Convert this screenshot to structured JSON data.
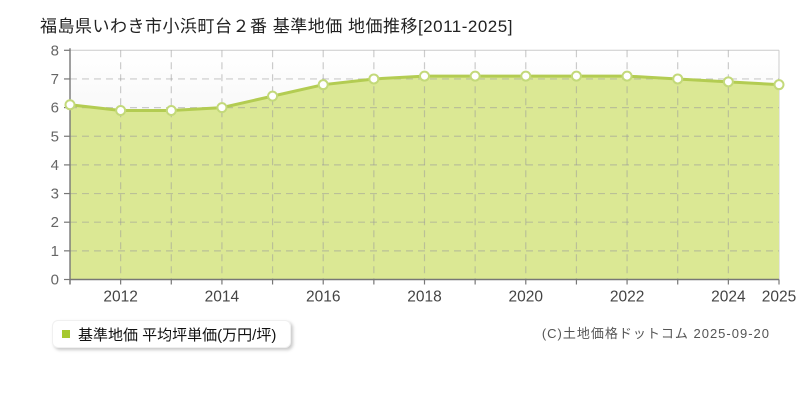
{
  "title": "福島県いわき市小浜町台２番 基準地価 地価推移[2011-2025]",
  "legend": {
    "label": "基準地価 平均坪単価(万円/坪)",
    "marker_color": "#a6c92f"
  },
  "copyright": "(C)土地価格ドットコム 2025-09-20",
  "chart_data": {
    "type": "area",
    "title": "福島県いわき市小浜町台２番 基準地価 地価推移[2011-2025]",
    "x": [
      2011,
      2012,
      2013,
      2014,
      2015,
      2016,
      2017,
      2018,
      2019,
      2020,
      2021,
      2022,
      2023,
      2024,
      2025
    ],
    "series": [
      {
        "name": "基準地価 平均坪単価(万円/坪)",
        "values": [
          6.1,
          5.9,
          5.9,
          6.0,
          6.4,
          6.8,
          7.0,
          7.1,
          7.1,
          7.1,
          7.1,
          7.1,
          7.0,
          6.9,
          6.8
        ]
      }
    ],
    "xlabel": "",
    "ylabel": "",
    "ylim": [
      0,
      8
    ],
    "yticks": [
      0,
      1,
      2,
      3,
      4,
      5,
      6,
      7,
      8
    ],
    "xtick_labels": [
      "2012",
      "2014",
      "2016",
      "2018",
      "2020",
      "2022",
      "2024",
      "2025"
    ],
    "grid": true,
    "grid_style": "dashed",
    "legend_position": "bottom-left",
    "colors": {
      "area_fill": "#dbe894",
      "line": "#b3cc52",
      "marker_fill": "#ffffff",
      "marker_stroke": "#c3d97a",
      "grid": "#9a9a9a",
      "axis": "#777777",
      "plot_border": "#cccccc",
      "ytick_text": "#666666",
      "xtick_text": "#444444",
      "bg_gradient_top": "#ffffff",
      "bg_gradient_bottom": "#e7e7e7"
    }
  }
}
